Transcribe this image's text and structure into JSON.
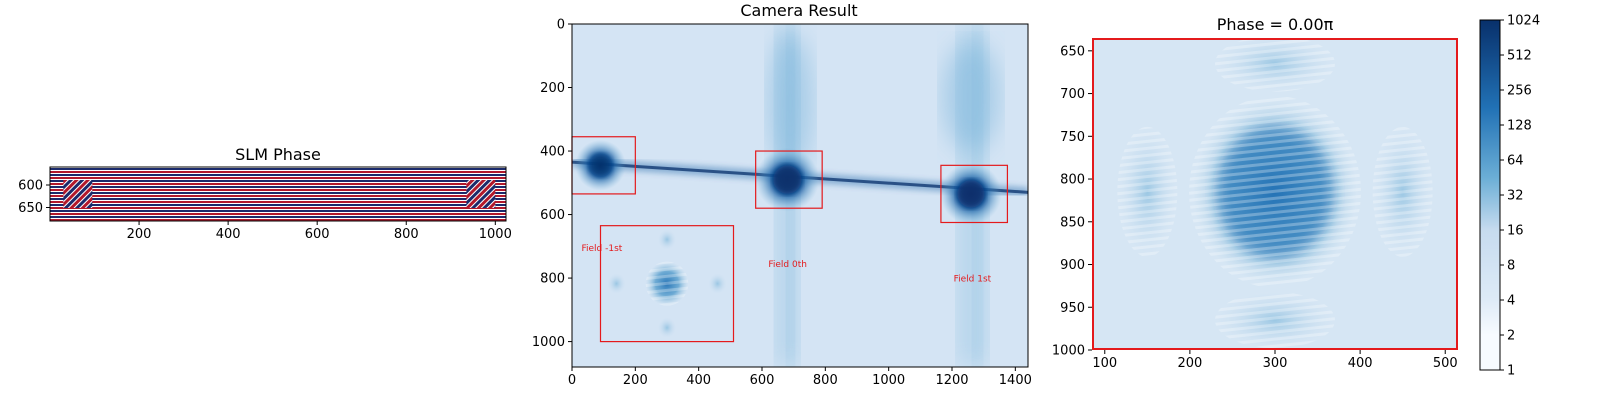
{
  "chart_data": [
    {
      "type": "heatmap",
      "title": "SLM Phase",
      "xlim": [
        0,
        1024
      ],
      "ylim": [
        560,
        680
      ],
      "xticks": [
        200,
        400,
        600,
        800,
        1000
      ],
      "yticks": [
        600,
        650
      ],
      "grating_windows": [
        [
          30,
          95
        ],
        [
          935,
          1000
        ]
      ],
      "colors": [
        "#1b2a6b",
        "#ffffff",
        "#b2182b"
      ]
    },
    {
      "type": "heatmap",
      "title": "Camera Result",
      "xlim": [
        0,
        1440
      ],
      "ylim": [
        0,
        1080
      ],
      "xticks": [
        0,
        200,
        400,
        600,
        800,
        1000,
        1200,
        1400
      ],
      "yticks": [
        0,
        200,
        400,
        600,
        800,
        1000
      ],
      "colormap": "Blues",
      "beam_line": [
        [
          0,
          435
        ],
        [
          1440,
          530
        ]
      ],
      "spots": [
        {
          "x": 90,
          "y": 445,
          "strength": 0.7
        },
        {
          "x": 680,
          "y": 490,
          "strength": 1.0
        },
        {
          "x": 1260,
          "y": 535,
          "strength": 0.95
        }
      ],
      "boxes": [
        {
          "label": "Field -1st",
          "x": [
            0,
            200
          ],
          "y": [
            355,
            535
          ],
          "label_at": [
            30,
            715
          ]
        },
        {
          "label": "Field 0th",
          "x": [
            580,
            790
          ],
          "y": [
            400,
            580
          ],
          "label_at": [
            620,
            765
          ]
        },
        {
          "label": "Field 1st",
          "x": [
            1165,
            1375
          ],
          "y": [
            445,
            625
          ],
          "label_at": [
            1205,
            810
          ]
        }
      ],
      "inset": {
        "x": [
          90,
          510
        ],
        "y": [
          635,
          1000
        ]
      },
      "box_color": "#e41a1c"
    },
    {
      "type": "heatmap",
      "title": "Phase = 0.00π",
      "xlim": [
        85,
        515
      ],
      "ylim": [
        635,
        1000
      ],
      "xticks": [
        100,
        200,
        300,
        400,
        500
      ],
      "yticks": [
        650,
        700,
        750,
        800,
        850,
        900,
        950,
        1000
      ],
      "colormap": "Blues",
      "colorbar": {
        "scale": "log2",
        "range": [
          1,
          1024
        ],
        "ticks": [
          "1",
          "2",
          "4",
          "8",
          "16",
          "32",
          "64",
          "128",
          "256",
          "512",
          "1024"
        ]
      },
      "border_color": "#e41a1c"
    }
  ]
}
